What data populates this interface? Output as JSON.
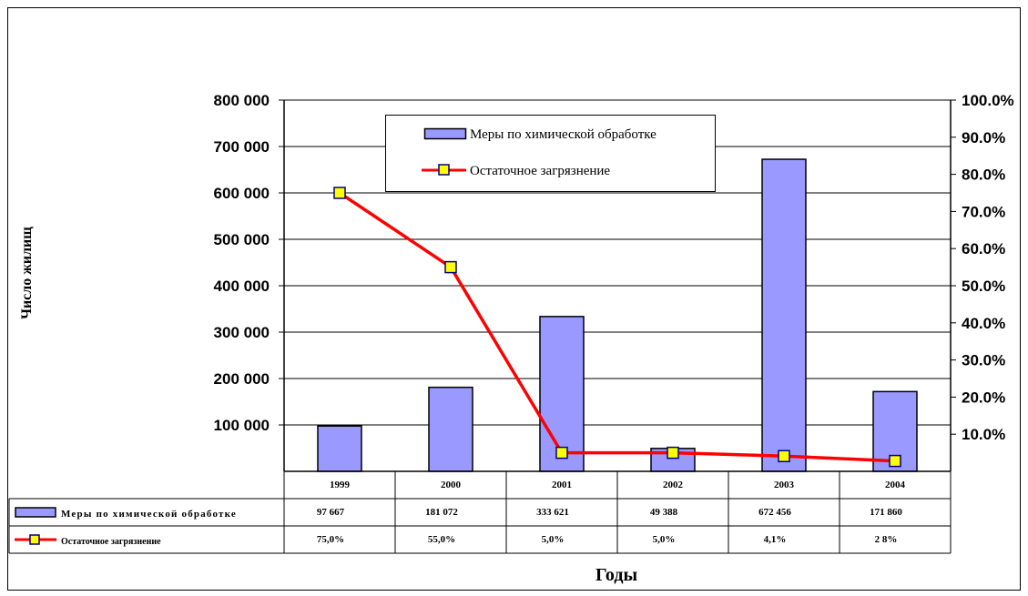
{
  "chart_data": {
    "type": "bar",
    "title": "",
    "xlabel": "Годы",
    "ylabel": "Число жилищ",
    "categories": [
      "1999",
      "2000",
      "2001",
      "2002",
      "2003",
      "2004"
    ],
    "ylim": [
      0,
      800000
    ],
    "y2lim": [
      0,
      1.0
    ],
    "y_ticks": [
      "800 000",
      "700 000",
      "600 000",
      "500 000",
      "400 000",
      "300 000",
      "200 000",
      "100 000"
    ],
    "y2_ticks": [
      "100.0%",
      "90.0%",
      "80.0%",
      "70.0%",
      "60.0%",
      "50.0%",
      "40.0%",
      "30.0%",
      "20.0%",
      "10.0%"
    ],
    "grid": true,
    "legend_position": "top-center",
    "series": [
      {
        "name": "Меры по химической обработке",
        "type": "bar",
        "axis": "left",
        "color": "#9999ff",
        "values": [
          97667,
          181072,
          333621,
          49388,
          672456,
          171860
        ],
        "labels": [
          "97 667",
          "181 072",
          "333 621",
          "49 388",
          "672 456",
          "171 860"
        ]
      },
      {
        "name": "Остаточное загрязнение",
        "type": "line",
        "axis": "right",
        "color": "#ff0000",
        "marker_color": "#ffff00",
        "marker_edge": "#000080",
        "values": [
          0.75,
          0.55,
          0.05,
          0.05,
          0.041,
          0.028
        ],
        "labels": [
          "75,0%",
          "55,0%",
          "5,0%",
          "5,0%",
          "4,1%",
          "2 8%"
        ]
      }
    ]
  }
}
